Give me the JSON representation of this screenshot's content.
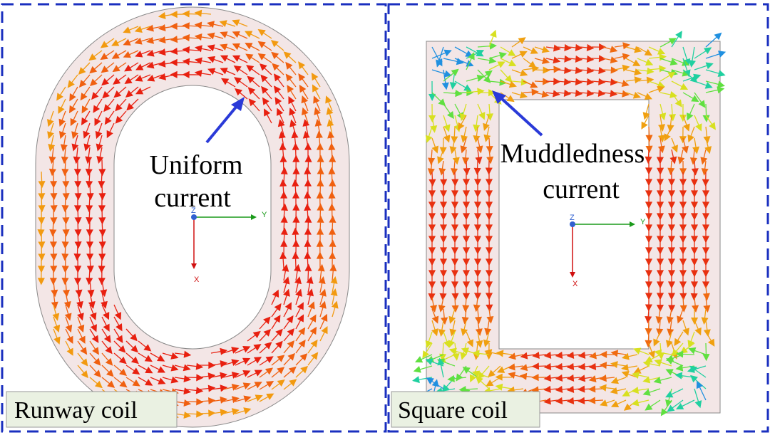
{
  "panels": [
    {
      "label": "Runway coil",
      "annotation": [
        "Uniform",
        "current"
      ],
      "axes": {
        "z": "Z",
        "y": "Y",
        "x": "X"
      }
    },
    {
      "label": "Square coil",
      "annotation": [
        "Muddledness",
        "current"
      ],
      "axes": {
        "z": "Z",
        "y": "Y",
        "x": "X"
      }
    }
  ]
}
